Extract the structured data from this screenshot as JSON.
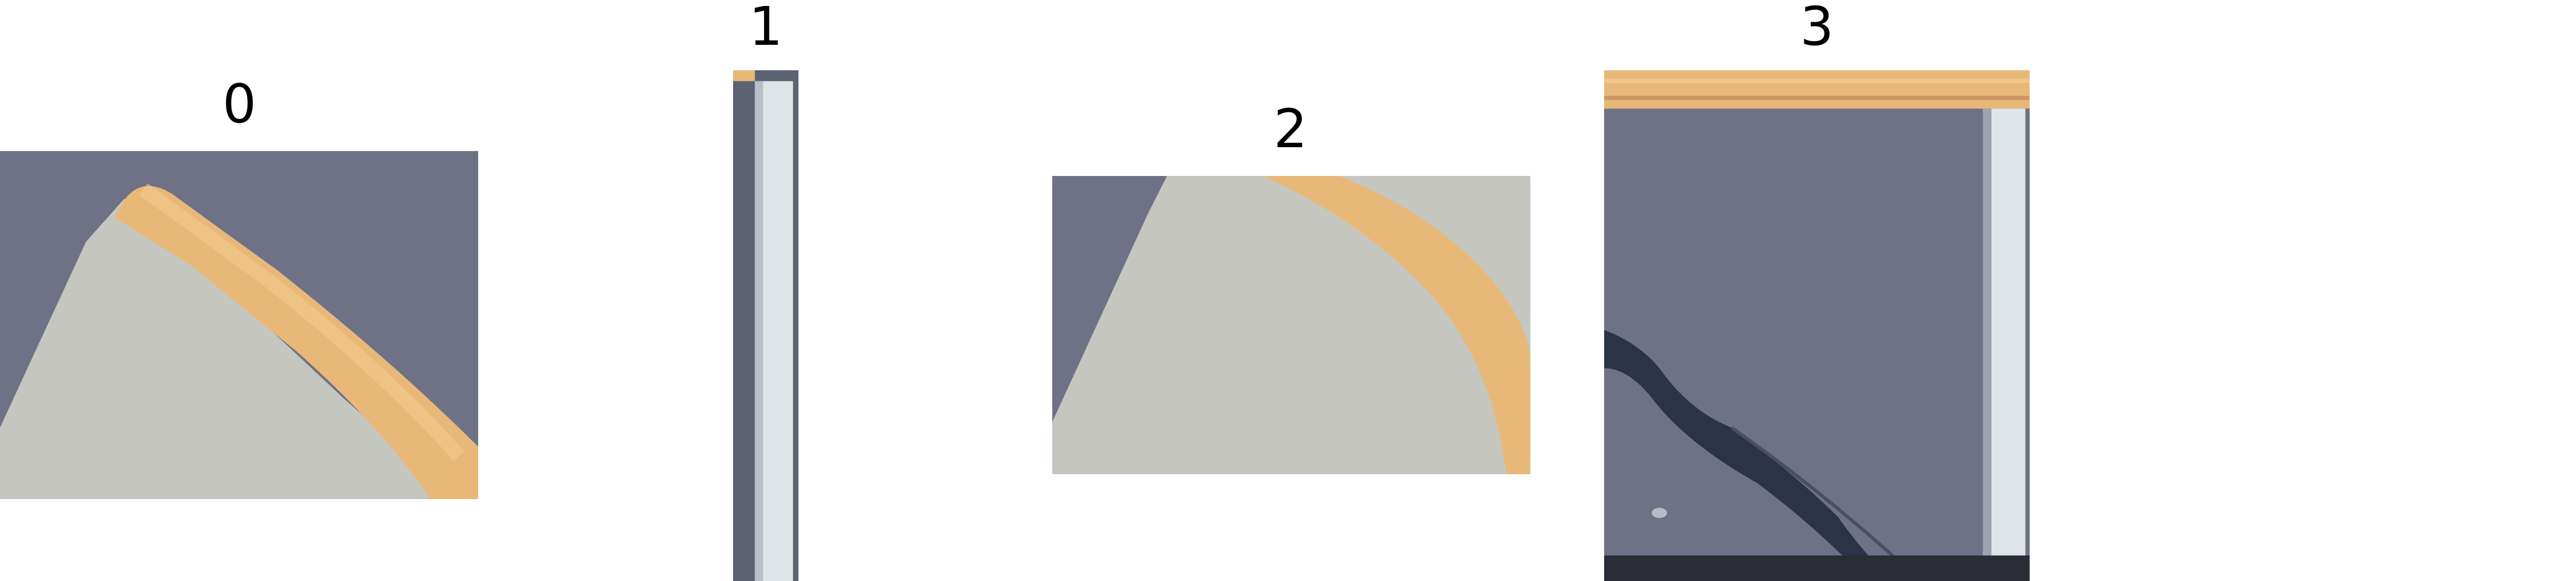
{
  "panels": [
    {
      "label": "0"
    },
    {
      "label": "1"
    },
    {
      "label": "2"
    },
    {
      "label": "3"
    }
  ],
  "colors": {
    "asphalt": "#6f7286",
    "asphalt_dark": "#5d6174",
    "pavement": "#c5c6bf",
    "pavement_light": "#d2d2c9",
    "curb_yellow": "#e8b878",
    "curb_yellow_light": "#f2c98e",
    "curb_white": "#dfe4e8",
    "shadow": "#2c3346",
    "edge_dark": "#2a2c36"
  }
}
